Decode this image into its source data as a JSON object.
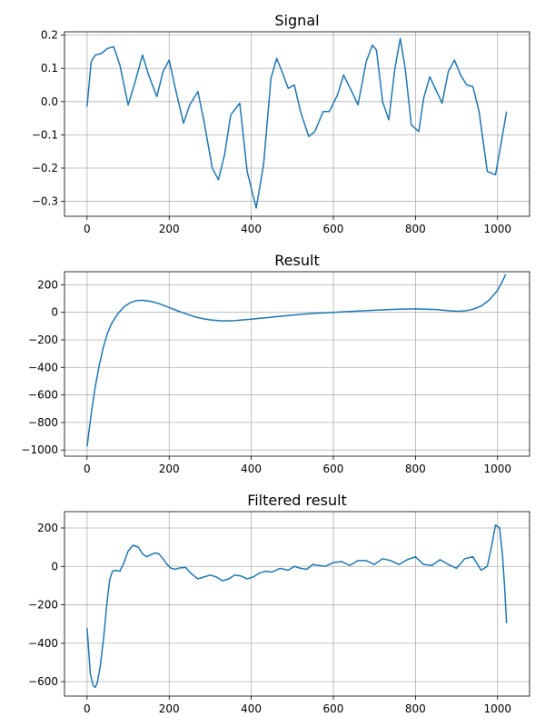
{
  "chart_data": [
    {
      "type": "line",
      "title": "Signal",
      "xlim": [
        -55,
        1078
      ],
      "ylim": [
        -0.345,
        0.21
      ],
      "xticks": [
        0,
        200,
        400,
        600,
        800,
        1000
      ],
      "xtick_labels": [
        "0",
        "200",
        "400",
        "600",
        "800",
        "1000"
      ],
      "yticks": [
        -0.3,
        -0.2,
        -0.1,
        0.0,
        0.1,
        0.2
      ],
      "ytick_labels": [
        "−0.3",
        "−0.2",
        "−0.1",
        "0.0",
        "0.1",
        "0.2"
      ],
      "grid": true,
      "color": "#1f77b4",
      "series": [
        {
          "x": [
            0,
            10,
            20,
            35,
            50,
            65,
            80,
            100,
            115,
            135,
            150,
            170,
            185,
            200,
            215,
            235,
            250,
            270,
            285,
            305,
            320,
            335,
            350,
            372,
            390,
            412,
            430,
            448,
            462,
            475,
            490,
            505,
            520,
            540,
            555,
            575,
            590,
            610,
            625,
            645,
            660,
            680,
            695,
            705,
            720,
            735,
            750,
            763,
            775,
            790,
            808,
            820,
            835,
            848,
            865,
            880,
            895,
            910,
            925,
            940,
            955,
            975,
            995,
            1008,
            1022
          ],
          "y": [
            -0.015,
            0.12,
            0.14,
            0.145,
            0.16,
            0.165,
            0.11,
            -0.01,
            0.05,
            0.14,
            0.08,
            0.015,
            0.09,
            0.125,
            0.04,
            -0.065,
            -0.01,
            0.03,
            -0.06,
            -0.2,
            -0.235,
            -0.16,
            -0.04,
            -0.005,
            -0.21,
            -0.32,
            -0.19,
            0.07,
            0.13,
            0.09,
            0.04,
            0.05,
            -0.03,
            -0.105,
            -0.09,
            -0.03,
            -0.03,
            0.02,
            0.08,
            0.03,
            -0.01,
            0.12,
            0.17,
            0.155,
            0.0,
            -0.055,
            0.1,
            0.19,
            0.1,
            -0.07,
            -0.09,
            0.01,
            0.075,
            0.04,
            -0.005,
            0.09,
            0.125,
            0.08,
            0.05,
            0.045,
            -0.03,
            -0.21,
            -0.22,
            -0.13,
            -0.03
          ]
        }
      ]
    },
    {
      "type": "line",
      "title": "Result",
      "xlim": [
        -55,
        1078
      ],
      "ylim": [
        -1045,
        295
      ],
      "xticks": [
        0,
        200,
        400,
        600,
        800,
        1000
      ],
      "xtick_labels": [
        "0",
        "200",
        "400",
        "600",
        "800",
        "1000"
      ],
      "yticks": [
        -1000,
        -800,
        -600,
        -400,
        -200,
        0,
        200
      ],
      "ytick_labels": [
        "−1000",
        "−800",
        "−600",
        "−400",
        "−200",
        "0",
        "200"
      ],
      "grid": true,
      "color": "#1f77b4",
      "series": [
        {
          "x": [
            0,
            10,
            20,
            30,
            40,
            50,
            60,
            75,
            90,
            105,
            120,
            135,
            150,
            165,
            180,
            200,
            220,
            240,
            260,
            280,
            300,
            330,
            360,
            400,
            450,
            500,
            550,
            600,
            650,
            700,
            750,
            800,
            850,
            880,
            900,
            920,
            940,
            960,
            980,
            1000,
            1010,
            1020
          ],
          "y": [
            -975,
            -740,
            -540,
            -380,
            -250,
            -150,
            -80,
            -10,
            40,
            70,
            85,
            88,
            82,
            72,
            58,
            35,
            12,
            -10,
            -30,
            -45,
            -55,
            -62,
            -60,
            -50,
            -35,
            -20,
            -8,
            0,
            8,
            15,
            22,
            25,
            20,
            12,
            8,
            10,
            22,
            45,
            90,
            160,
            215,
            275
          ]
        }
      ]
    },
    {
      "type": "line",
      "title": "Filtered result",
      "xlim": [
        -55,
        1078
      ],
      "ylim": [
        -675,
        285
      ],
      "xticks": [
        0,
        200,
        400,
        600,
        800,
        1000
      ],
      "xtick_labels": [
        "0",
        "200",
        "400",
        "600",
        "800",
        "1000"
      ],
      "yticks": [
        -600,
        -400,
        -200,
        0,
        200
      ],
      "ytick_labels": [
        "−600",
        "−400",
        "−200",
        "0",
        "200"
      ],
      "grid": true,
      "color": "#1f77b4",
      "series": [
        {
          "x": [
            0,
            8,
            15,
            20,
            25,
            32,
            40,
            48,
            55,
            62,
            70,
            80,
            90,
            100,
            112,
            125,
            135,
            145,
            155,
            165,
            175,
            185,
            195,
            205,
            215,
            225,
            240,
            255,
            270,
            285,
            300,
            315,
            330,
            345,
            360,
            375,
            390,
            405,
            420,
            435,
            450,
            470,
            490,
            505,
            520,
            535,
            550,
            565,
            580,
            600,
            620,
            640,
            660,
            680,
            700,
            720,
            740,
            760,
            780,
            800,
            820,
            840,
            860,
            880,
            900,
            920,
            940,
            960,
            975,
            985,
            995,
            1005,
            1012,
            1017,
            1022
          ],
          "y": [
            -320,
            -560,
            -620,
            -630,
            -605,
            -520,
            -380,
            -200,
            -70,
            -25,
            -20,
            -25,
            20,
            80,
            110,
            100,
            65,
            50,
            60,
            70,
            65,
            40,
            10,
            -10,
            -15,
            -8,
            -5,
            -40,
            -65,
            -55,
            -45,
            -55,
            -75,
            -65,
            -45,
            -50,
            -65,
            -55,
            -35,
            -25,
            -30,
            -10,
            -20,
            0,
            -10,
            -15,
            10,
            5,
            0,
            20,
            25,
            5,
            30,
            30,
            10,
            40,
            30,
            10,
            35,
            50,
            10,
            5,
            35,
            10,
            -10,
            40,
            50,
            -20,
            0,
            100,
            215,
            200,
            60,
            -100,
            -295
          ]
        }
      ]
    }
  ]
}
